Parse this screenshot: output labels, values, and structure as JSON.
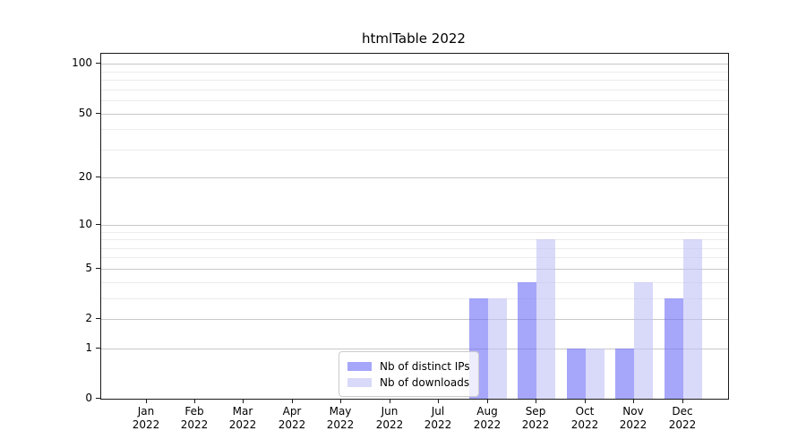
{
  "chart_data": {
    "type": "bar",
    "title": "htmlTable 2022",
    "categories": [
      "Jan",
      "Feb",
      "Mar",
      "Apr",
      "May",
      "Jun",
      "Jul",
      "Aug",
      "Sep",
      "Oct",
      "Nov",
      "Dec"
    ],
    "x_year_label": "2022",
    "series": [
      {
        "name": "Nb of distinct IPs",
        "color": "rgba(112,112,247,0.62)",
        "values": [
          0,
          0,
          0,
          0,
          0,
          0,
          0,
          3,
          4,
          1,
          1,
          3
        ]
      },
      {
        "name": "Nb of downloads",
        "color": "rgba(194,194,247,0.62)",
        "values": [
          0,
          0,
          0,
          0,
          0,
          0,
          0,
          3,
          8,
          1,
          4,
          8
        ]
      }
    ],
    "y_axis": {
      "scale": "log1p",
      "major_ticks": [
        0,
        1,
        2,
        5,
        10,
        20,
        50,
        100
      ],
      "minor_gridlines": [
        3,
        4,
        6,
        7,
        8,
        9,
        30,
        40,
        60,
        70,
        80,
        90
      ],
      "top_value": 115
    },
    "grid": "on",
    "legend_position": "lower center",
    "colors": {
      "major_grid": "#c8c8c8",
      "minor_grid": "#ececec",
      "axis": "#1a1a1a",
      "background": "#ffffff"
    }
  }
}
